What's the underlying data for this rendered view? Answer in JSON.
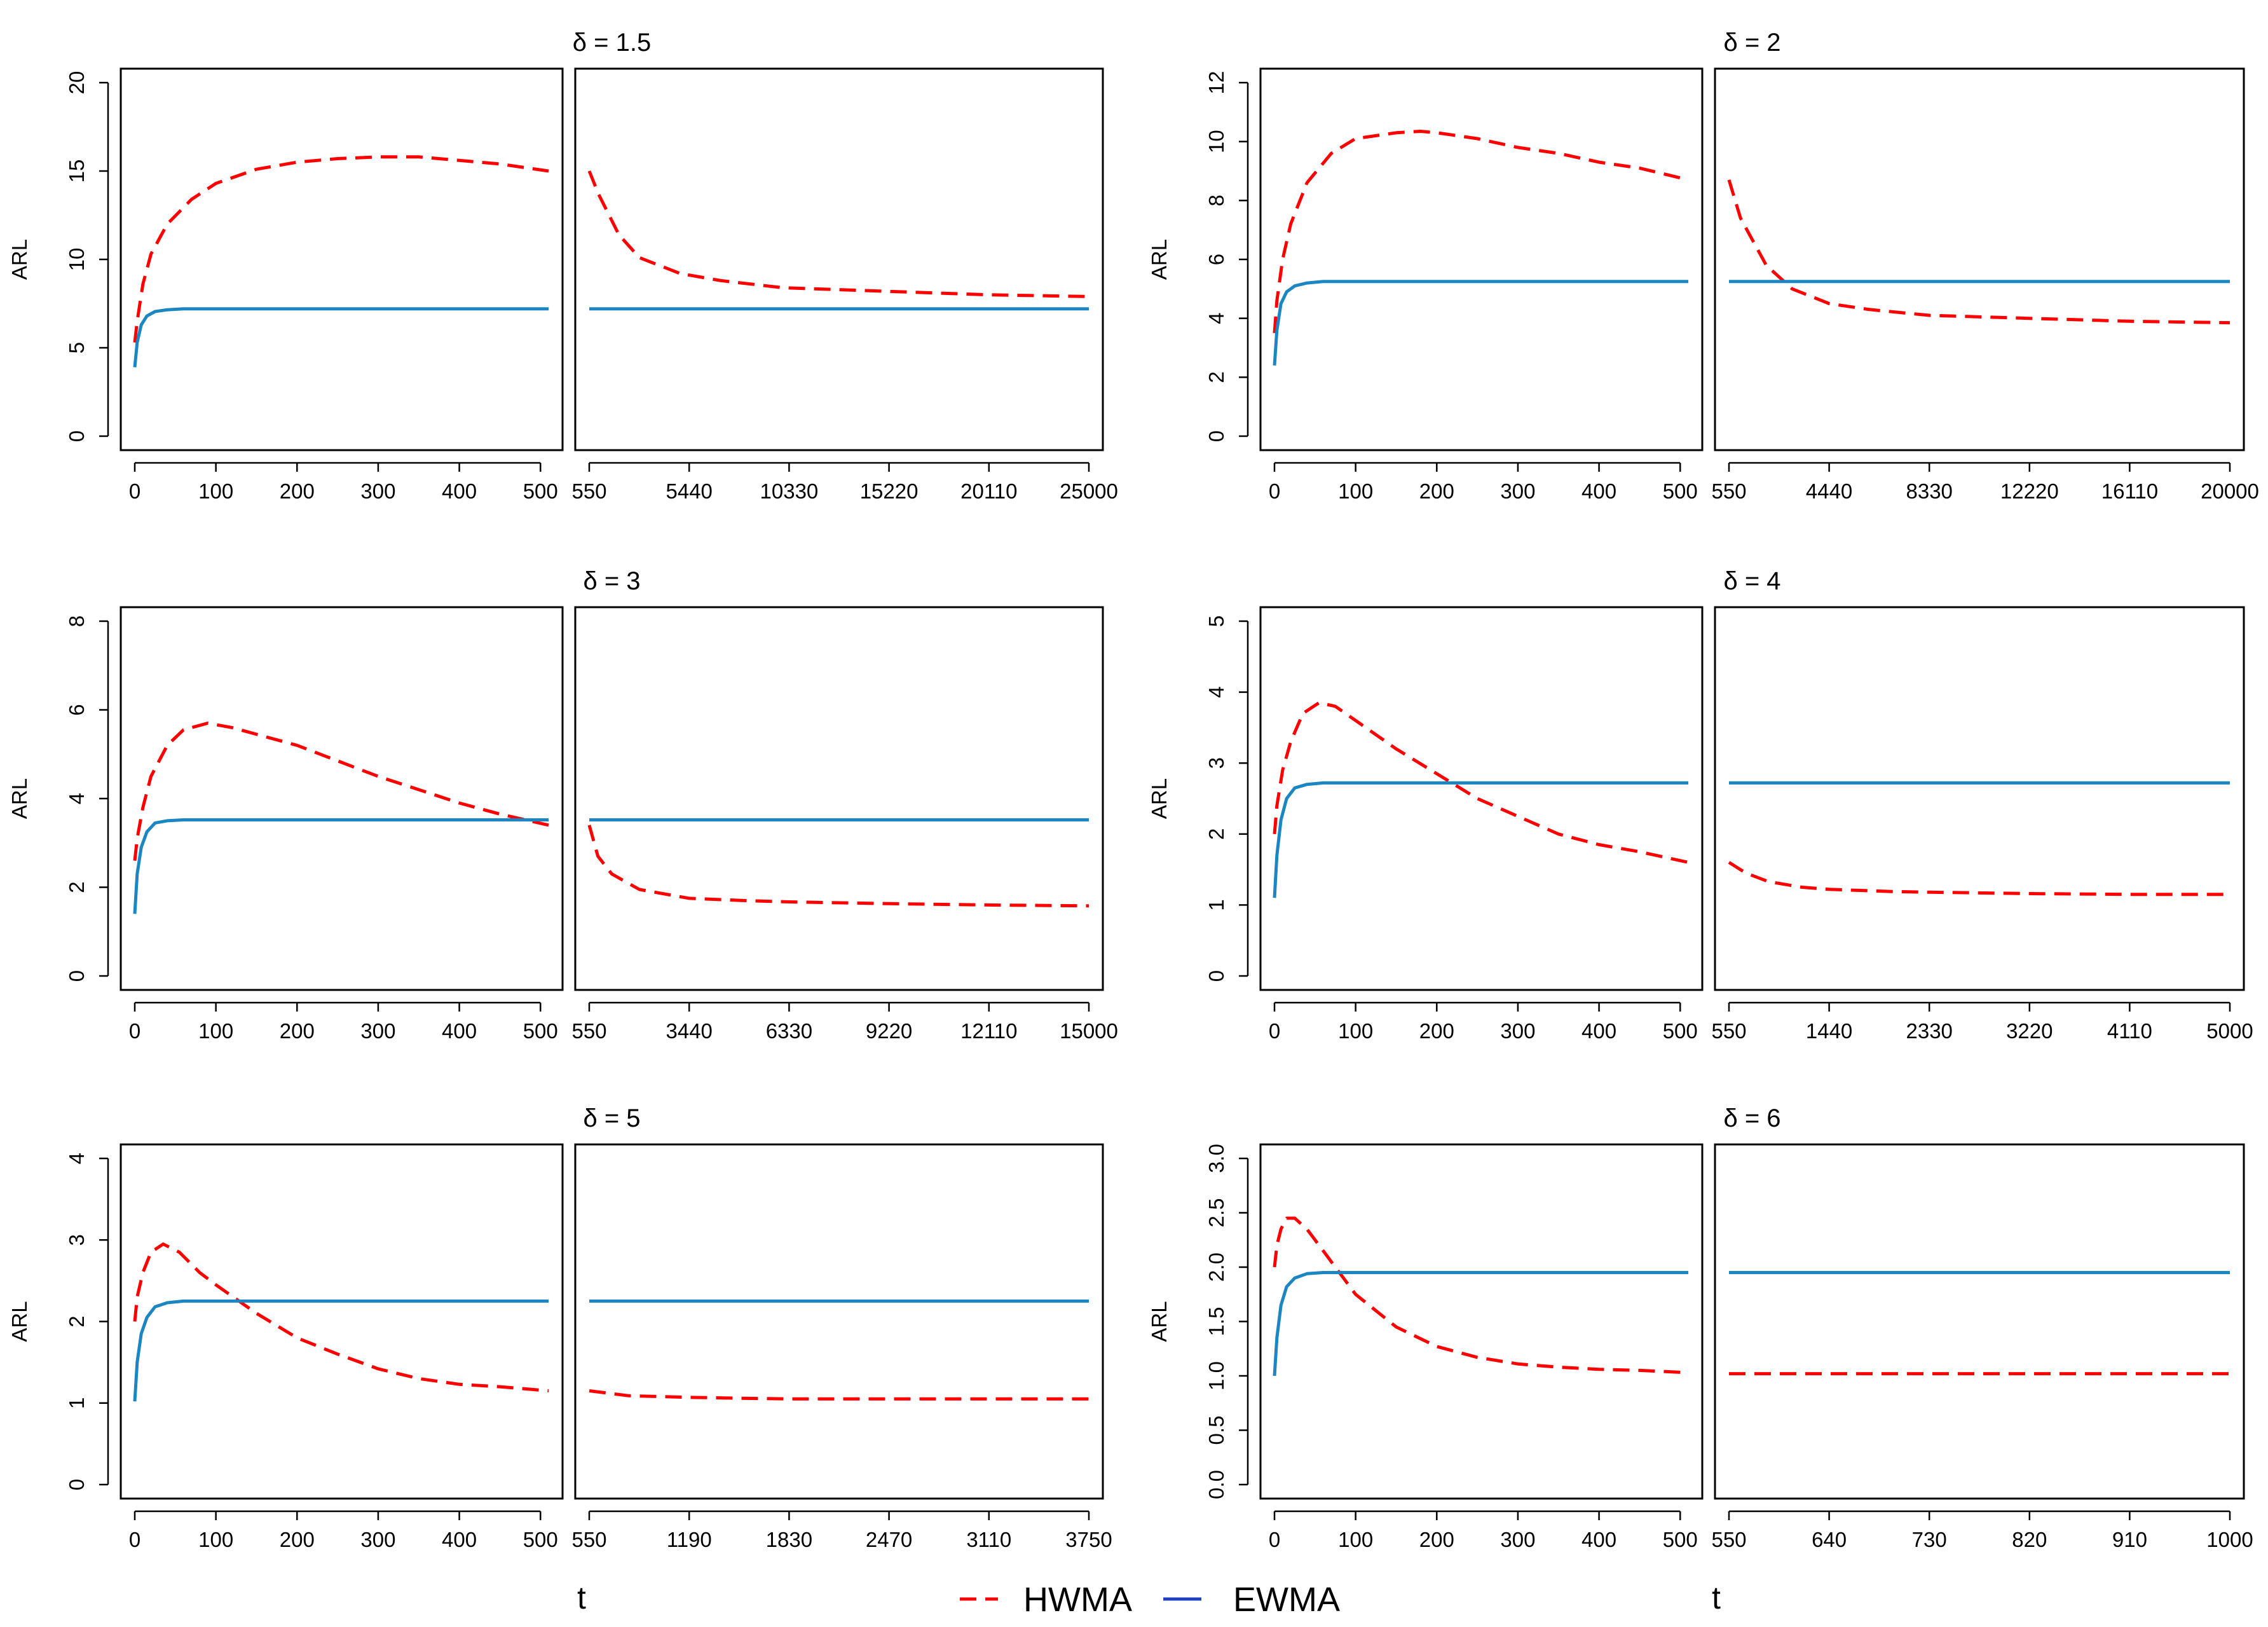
{
  "colors": {
    "hwma": "#FF0000",
    "ewma": "#1B86C2",
    "axis": "#000000",
    "legend_ewma": "#1F3FBF"
  },
  "legend": {
    "hwma": "HWMA",
    "ewma": "EWMA"
  },
  "x_axis_label": "t",
  "chart_data": [
    {
      "type": "line",
      "title": "δ = 1.5",
      "ylabel": "ARL",
      "ylim": [
        0,
        20
      ],
      "yticks": [
        "0",
        "5",
        "10",
        "15",
        "20"
      ],
      "left": {
        "xlim": [
          0,
          510
        ],
        "xticks": [
          "0",
          "100",
          "200",
          "300",
          "400",
          "500"
        ]
      },
      "right": {
        "xlim": [
          550,
          25000
        ],
        "xticks": [
          "550",
          "5440",
          "10330",
          "15220",
          "20110",
          "25000"
        ]
      },
      "series": [
        {
          "name": "HWMA",
          "left": [
            [
              0,
              5.3
            ],
            [
              3,
              6.5
            ],
            [
              10,
              8.6
            ],
            [
              20,
              10.3
            ],
            [
              40,
              12.0
            ],
            [
              70,
              13.4
            ],
            [
              100,
              14.3
            ],
            [
              150,
              15.1
            ],
            [
              200,
              15.5
            ],
            [
              250,
              15.7
            ],
            [
              300,
              15.8
            ],
            [
              350,
              15.8
            ],
            [
              400,
              15.6
            ],
            [
              450,
              15.4
            ],
            [
              510,
              15.0
            ]
          ],
          "right": [
            [
              550,
              15.0
            ],
            [
              1000,
              13.7
            ],
            [
              2000,
              11.4
            ],
            [
              3000,
              10.1
            ],
            [
              5000,
              9.2
            ],
            [
              7000,
              8.8
            ],
            [
              10000,
              8.4
            ],
            [
              15000,
              8.2
            ],
            [
              20000,
              8.0
            ],
            [
              25000,
              7.9
            ]
          ]
        },
        {
          "name": "EWMA",
          "left": [
            [
              0,
              3.9
            ],
            [
              3,
              5.3
            ],
            [
              8,
              6.3
            ],
            [
              15,
              6.8
            ],
            [
              25,
              7.05
            ],
            [
              40,
              7.15
            ],
            [
              60,
              7.2
            ],
            [
              510,
              7.2
            ]
          ],
          "right": [
            [
              550,
              7.2
            ],
            [
              25000,
              7.2
            ]
          ]
        }
      ]
    },
    {
      "type": "line",
      "title": "δ = 2",
      "ylabel": "ARL",
      "ylim": [
        0,
        12
      ],
      "yticks": [
        "0",
        "2",
        "4",
        "6",
        "8",
        "10",
        "12"
      ],
      "left": {
        "xlim": [
          0,
          510
        ],
        "xticks": [
          "0",
          "100",
          "200",
          "300",
          "400",
          "500"
        ]
      },
      "right": {
        "xlim": [
          550,
          20000
        ],
        "xticks": [
          "550",
          "4440",
          "8330",
          "12220",
          "16110",
          "20000"
        ]
      },
      "series": [
        {
          "name": "HWMA",
          "left": [
            [
              0,
              3.5
            ],
            [
              3,
              4.6
            ],
            [
              10,
              6.0
            ],
            [
              20,
              7.2
            ],
            [
              40,
              8.6
            ],
            [
              70,
              9.6
            ],
            [
              100,
              10.1
            ],
            [
              150,
              10.3
            ],
            [
              180,
              10.35
            ],
            [
              200,
              10.3
            ],
            [
              250,
              10.1
            ],
            [
              300,
              9.8
            ],
            [
              350,
              9.6
            ],
            [
              400,
              9.3
            ],
            [
              450,
              9.1
            ],
            [
              510,
              8.7
            ]
          ],
          "right": [
            [
              550,
              8.7
            ],
            [
              1000,
              7.4
            ],
            [
              2000,
              5.8
            ],
            [
              3000,
              5.0
            ],
            [
              4440,
              4.5
            ],
            [
              6000,
              4.3
            ],
            [
              8330,
              4.1
            ],
            [
              12220,
              4.0
            ],
            [
              16110,
              3.9
            ],
            [
              20000,
              3.85
            ]
          ]
        },
        {
          "name": "EWMA",
          "left": [
            [
              0,
              2.4
            ],
            [
              3,
              3.6
            ],
            [
              8,
              4.5
            ],
            [
              15,
              4.9
            ],
            [
              25,
              5.1
            ],
            [
              40,
              5.2
            ],
            [
              60,
              5.25
            ],
            [
              510,
              5.25
            ]
          ],
          "right": [
            [
              550,
              5.25
            ],
            [
              20000,
              5.25
            ]
          ]
        }
      ]
    },
    {
      "type": "line",
      "title": "δ = 3",
      "ylabel": "ARL",
      "ylim": [
        0,
        8
      ],
      "yticks": [
        "0",
        "2",
        "4",
        "6",
        "8"
      ],
      "left": {
        "xlim": [
          0,
          510
        ],
        "xticks": [
          "0",
          "100",
          "200",
          "300",
          "400",
          "500"
        ]
      },
      "right": {
        "xlim": [
          550,
          15000
        ],
        "xticks": [
          "550",
          "3440",
          "6330",
          "9220",
          "12110",
          "15000"
        ]
      },
      "series": [
        {
          "name": "HWMA",
          "left": [
            [
              0,
              2.6
            ],
            [
              3,
              3.1
            ],
            [
              10,
              3.8
            ],
            [
              20,
              4.5
            ],
            [
              40,
              5.2
            ],
            [
              60,
              5.55
            ],
            [
              90,
              5.7
            ],
            [
              120,
              5.6
            ],
            [
              150,
              5.45
            ],
            [
              200,
              5.2
            ],
            [
              250,
              4.85
            ],
            [
              300,
              4.5
            ],
            [
              350,
              4.2
            ],
            [
              400,
              3.9
            ],
            [
              450,
              3.65
            ],
            [
              510,
              3.4
            ]
          ],
          "right": [
            [
              550,
              3.4
            ],
            [
              800,
              2.7
            ],
            [
              1200,
              2.3
            ],
            [
              2000,
              1.95
            ],
            [
              3440,
              1.75
            ],
            [
              5000,
              1.7
            ],
            [
              6330,
              1.67
            ],
            [
              9220,
              1.63
            ],
            [
              12110,
              1.6
            ],
            [
              15000,
              1.58
            ]
          ]
        },
        {
          "name": "EWMA",
          "left": [
            [
              0,
              1.4
            ],
            [
              3,
              2.3
            ],
            [
              8,
              2.9
            ],
            [
              15,
              3.25
            ],
            [
              25,
              3.45
            ],
            [
              40,
              3.5
            ],
            [
              60,
              3.52
            ],
            [
              510,
              3.52
            ]
          ],
          "right": [
            [
              550,
              3.52
            ],
            [
              15000,
              3.52
            ]
          ]
        }
      ]
    },
    {
      "type": "line",
      "title": "δ = 4",
      "ylabel": "ARL",
      "ylim": [
        0,
        5
      ],
      "yticks": [
        "0",
        "1",
        "2",
        "3",
        "4",
        "5"
      ],
      "left": {
        "xlim": [
          0,
          510
        ],
        "xticks": [
          "0",
          "100",
          "200",
          "300",
          "400",
          "500"
        ]
      },
      "right": {
        "xlim": [
          550,
          5000
        ],
        "xticks": [
          "550",
          "1440",
          "2330",
          "3220",
          "4110",
          "5000"
        ]
      },
      "series": [
        {
          "name": "HWMA",
          "left": [
            [
              0,
              2.0
            ],
            [
              3,
              2.4
            ],
            [
              10,
              2.9
            ],
            [
              20,
              3.3
            ],
            [
              35,
              3.7
            ],
            [
              55,
              3.85
            ],
            [
              75,
              3.8
            ],
            [
              100,
              3.6
            ],
            [
              150,
              3.2
            ],
            [
              200,
              2.85
            ],
            [
              250,
              2.5
            ],
            [
              300,
              2.25
            ],
            [
              350,
              2.0
            ],
            [
              400,
              1.85
            ],
            [
              450,
              1.75
            ],
            [
              510,
              1.6
            ]
          ],
          "right": [
            [
              550,
              1.6
            ],
            [
              700,
              1.45
            ],
            [
              900,
              1.33
            ],
            [
              1200,
              1.25
            ],
            [
              1440,
              1.22
            ],
            [
              2000,
              1.19
            ],
            [
              2330,
              1.18
            ],
            [
              3220,
              1.16
            ],
            [
              4110,
              1.15
            ],
            [
              5000,
              1.15
            ]
          ]
        },
        {
          "name": "EWMA",
          "left": [
            [
              0,
              1.1
            ],
            [
              3,
              1.7
            ],
            [
              8,
              2.2
            ],
            [
              15,
              2.5
            ],
            [
              25,
              2.65
            ],
            [
              40,
              2.7
            ],
            [
              60,
              2.72
            ],
            [
              510,
              2.72
            ]
          ],
          "right": [
            [
              550,
              2.72
            ],
            [
              5000,
              2.72
            ]
          ]
        }
      ]
    },
    {
      "type": "line",
      "title": "δ = 5",
      "ylabel": "ARL",
      "ylim": [
        0,
        4
      ],
      "yticks": [
        "0",
        "1",
        "2",
        "3",
        "4"
      ],
      "left": {
        "xlim": [
          0,
          510
        ],
        "xticks": [
          "0",
          "100",
          "200",
          "300",
          "400",
          "500"
        ]
      },
      "right": {
        "xlim": [
          550,
          3750
        ],
        "xticks": [
          "550",
          "1190",
          "1830",
          "2470",
          "3110",
          "3750"
        ]
      },
      "series": [
        {
          "name": "HWMA",
          "left": [
            [
              0,
              2.0
            ],
            [
              3,
              2.3
            ],
            [
              10,
              2.6
            ],
            [
              20,
              2.85
            ],
            [
              35,
              2.95
            ],
            [
              55,
              2.85
            ],
            [
              80,
              2.6
            ],
            [
              100,
              2.45
            ],
            [
              150,
              2.1
            ],
            [
              200,
              1.8
            ],
            [
              250,
              1.6
            ],
            [
              300,
              1.42
            ],
            [
              350,
              1.3
            ],
            [
              400,
              1.23
            ],
            [
              450,
              1.2
            ],
            [
              510,
              1.15
            ]
          ],
          "right": [
            [
              550,
              1.15
            ],
            [
              800,
              1.09
            ],
            [
              1190,
              1.07
            ],
            [
              1500,
              1.06
            ],
            [
              1830,
              1.05
            ],
            [
              2470,
              1.05
            ],
            [
              3110,
              1.05
            ],
            [
              3750,
              1.05
            ]
          ]
        },
        {
          "name": "EWMA",
          "left": [
            [
              0,
              1.02
            ],
            [
              3,
              1.5
            ],
            [
              8,
              1.85
            ],
            [
              15,
              2.05
            ],
            [
              25,
              2.18
            ],
            [
              40,
              2.23
            ],
            [
              60,
              2.25
            ],
            [
              510,
              2.25
            ]
          ],
          "right": [
            [
              550,
              2.25
            ],
            [
              3750,
              2.25
            ]
          ]
        }
      ]
    },
    {
      "type": "line",
      "title": "δ = 6",
      "ylabel": "ARL",
      "ylim": [
        0,
        3
      ],
      "yticks": [
        "0.0",
        "0.5",
        "1.0",
        "1.5",
        "2.0",
        "2.5",
        "3.0"
      ],
      "left": {
        "xlim": [
          0,
          510
        ],
        "xticks": [
          "0",
          "100",
          "200",
          "300",
          "400",
          "500"
        ]
      },
      "right": {
        "xlim": [
          550,
          1000
        ],
        "xticks": [
          "550",
          "640",
          "730",
          "820",
          "910",
          "1000"
        ]
      },
      "series": [
        {
          "name": "HWMA",
          "left": [
            [
              0,
              2.0
            ],
            [
              3,
              2.2
            ],
            [
              8,
              2.35
            ],
            [
              15,
              2.45
            ],
            [
              25,
              2.45
            ],
            [
              40,
              2.35
            ],
            [
              60,
              2.15
            ],
            [
              80,
              1.95
            ],
            [
              100,
              1.75
            ],
            [
              150,
              1.45
            ],
            [
              200,
              1.27
            ],
            [
              250,
              1.17
            ],
            [
              300,
              1.11
            ],
            [
              350,
              1.08
            ],
            [
              400,
              1.06
            ],
            [
              450,
              1.05
            ],
            [
              510,
              1.03
            ]
          ],
          "right": [
            [
              550,
              1.02
            ],
            [
              1000,
              1.02
            ]
          ]
        },
        {
          "name": "EWMA",
          "left": [
            [
              0,
              1.0
            ],
            [
              3,
              1.35
            ],
            [
              8,
              1.65
            ],
            [
              15,
              1.82
            ],
            [
              25,
              1.9
            ],
            [
              40,
              1.94
            ],
            [
              60,
              1.95
            ],
            [
              510,
              1.95
            ]
          ],
          "right": [
            [
              550,
              1.95
            ],
            [
              1000,
              1.95
            ]
          ]
        }
      ]
    }
  ]
}
